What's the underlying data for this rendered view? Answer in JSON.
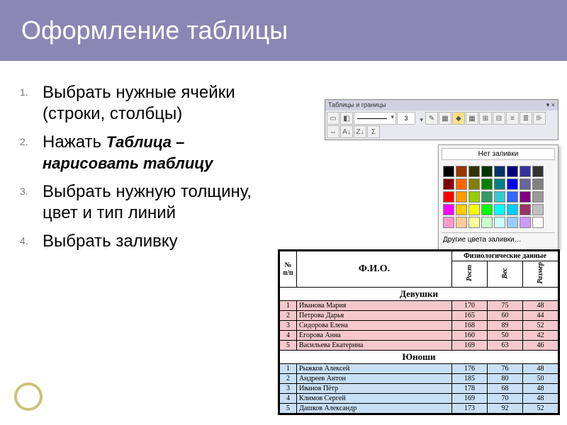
{
  "title": "Оформление таблицы",
  "steps": [
    {
      "num": "1.",
      "text": "Выбрать нужные ячейки (строки, столбцы)"
    },
    {
      "num": "2.",
      "prefix": "Нажать ",
      "bold": "Таблица – нарисовать таблицу"
    },
    {
      "num": "3.",
      "text": "Выбрать нужную толщину, цвет и тип линий"
    },
    {
      "num": "4.",
      "text": "Выбрать заливку"
    }
  ],
  "toolbar": {
    "title": "Таблицы и границы",
    "close": "×",
    "line_width": "3",
    "no_fill": "Нет заливки",
    "more_colors": "Другие цвета заливки…",
    "colors": [
      "#000000",
      "#993300",
      "#333300",
      "#003300",
      "#003366",
      "#000080",
      "#333399",
      "#333333",
      "#800000",
      "#ff6600",
      "#808000",
      "#008000",
      "#008080",
      "#0000ff",
      "#666699",
      "#808080",
      "#ff0000",
      "#ff9900",
      "#99cc00",
      "#339966",
      "#33cccc",
      "#3366ff",
      "#800080",
      "#999999",
      "#ff00ff",
      "#ffcc00",
      "#ffff00",
      "#00ff00",
      "#00ffff",
      "#00ccff",
      "#993366",
      "#c0c0c0",
      "#ff99cc",
      "#ffcc99",
      "#ffff99",
      "#ccffcc",
      "#ccffff",
      "#99ccff",
      "#cc99ff",
      "#ffffff"
    ]
  },
  "table": {
    "header_group": "Физиологические данные",
    "col_npn": "№ п/п",
    "col_fio": "Ф.И.О.",
    "col_rost": "Рост",
    "col_ves": "Вес",
    "col_razmer": "Размер",
    "section_girls": "Девушки",
    "section_boys": "Юноши",
    "girls": [
      {
        "n": "1",
        "fio": "Иванова Мария",
        "r": "170",
        "v": "75",
        "s": "48"
      },
      {
        "n": "2",
        "fio": "Петрова Дарья",
        "r": "165",
        "v": "60",
        "s": "44"
      },
      {
        "n": "3",
        "fio": "Сидорова Елена",
        "r": "168",
        "v": "89",
        "s": "52"
      },
      {
        "n": "4",
        "fio": "Егорова Анна",
        "r": "160",
        "v": "50",
        "s": "42"
      },
      {
        "n": "5",
        "fio": "Васильева Екатерина",
        "r": "169",
        "v": "63",
        "s": "46"
      }
    ],
    "boys": [
      {
        "n": "1",
        "fio": "Рыжков Алексей",
        "r": "176",
        "v": "76",
        "s": "48"
      },
      {
        "n": "2",
        "fio": "Андреев Антон",
        "r": "185",
        "v": "80",
        "s": "50"
      },
      {
        "n": "3",
        "fio": "Иванов Пётр",
        "r": "178",
        "v": "68",
        "s": "48"
      },
      {
        "n": "4",
        "fio": "Климов Сергей",
        "r": "169",
        "v": "70",
        "s": "48"
      },
      {
        "n": "5",
        "fio": "Дашков Александр",
        "r": "173",
        "v": "92",
        "s": "52"
      }
    ],
    "girls_bg": "#f4c8cc",
    "boys_bg": "#c8dff4"
  },
  "accent_ring": "#c9c378",
  "title_bg": "#8a87b5"
}
